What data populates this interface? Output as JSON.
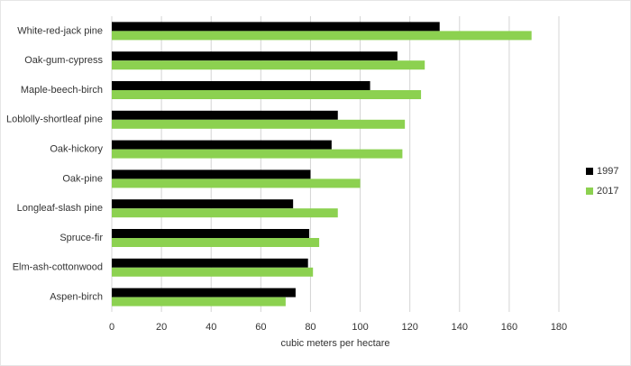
{
  "chart_data": {
    "type": "bar",
    "orientation": "horizontal",
    "x_label": "cubic meters per hectare",
    "categories": [
      "White-red-jack pine",
      "Oak-gum-cypress",
      "Maple-beech-birch",
      "Loblolly-shortleaf pine",
      "Oak-hickory",
      "Oak-pine",
      "Longleaf-slash pine",
      "Spruce-fir",
      "Elm-ash-cottonwood",
      "Aspen-birch"
    ],
    "series": [
      {
        "name": "1997",
        "color": "#000000",
        "values": [
          132,
          115,
          104,
          91,
          88.5,
          80,
          73,
          79.5,
          79,
          74
        ]
      },
      {
        "name": "2017",
        "color": "#8cd150",
        "values": [
          169,
          126,
          124.5,
          118,
          117,
          100,
          91,
          83.5,
          81,
          70
        ]
      }
    ],
    "xlim": [
      0,
      180
    ],
    "xticks": [
      0,
      20,
      40,
      60,
      80,
      100,
      120,
      140,
      160,
      180
    ],
    "grid": true,
    "legend": "right"
  }
}
